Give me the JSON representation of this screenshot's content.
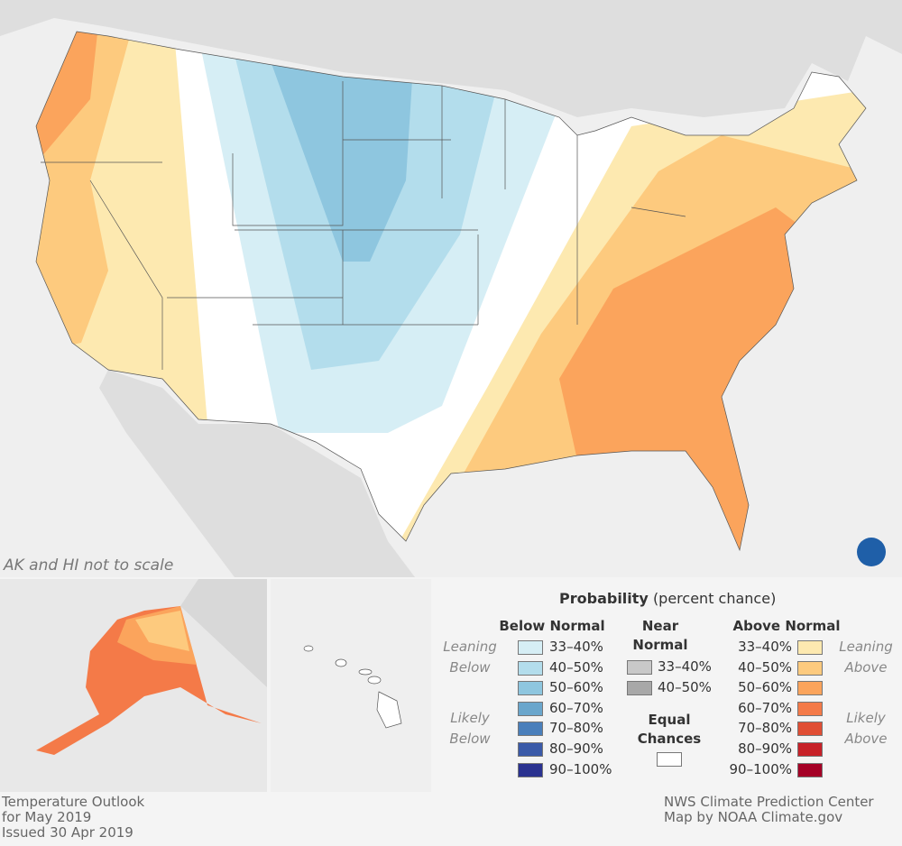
{
  "map": {
    "scale_note": "AK and HI not to scale",
    "logo": "NOAA"
  },
  "legend": {
    "title": "Probability",
    "title_sub": "(percent chance)",
    "below": {
      "heading": "Below Normal",
      "leaning": "Leaning Below",
      "likely": "Likely Below",
      "items": [
        {
          "label": "33–40%",
          "color": "#d6eef5"
        },
        {
          "label": "40–50%",
          "color": "#b3ddec"
        },
        {
          "label": "50–60%",
          "color": "#8ec6df"
        },
        {
          "label": "60–70%",
          "color": "#6aa6cc"
        },
        {
          "label": "70–80%",
          "color": "#4a7fbb"
        },
        {
          "label": "80–90%",
          "color": "#3a5aa8"
        },
        {
          "label": "90–100%",
          "color": "#2a3290"
        }
      ]
    },
    "near": {
      "heading": "Near Normal",
      "items": [
        {
          "label": "33–40%",
          "color": "#c8c8c8"
        },
        {
          "label": "40–50%",
          "color": "#a8a8a8"
        }
      ]
    },
    "equal": {
      "heading": "Equal Chances",
      "color": "#ffffff"
    },
    "above": {
      "heading": "Above Normal",
      "leaning": "Leaning Above",
      "likely": "Likely Above",
      "items": [
        {
          "label": "33–40%",
          "color": "#fde9b0"
        },
        {
          "label": "40–50%",
          "color": "#fdca7e"
        },
        {
          "label": "50–60%",
          "color": "#fba45c"
        },
        {
          "label": "60–70%",
          "color": "#f47a48"
        },
        {
          "label": "70–80%",
          "color": "#e04e34"
        },
        {
          "label": "80–90%",
          "color": "#c72128"
        },
        {
          "label": "90–100%",
          "color": "#a50026"
        }
      ]
    }
  },
  "footer": {
    "left": [
      "Temperature Outlook",
      "for May 2019",
      "Issued 30 Apr 2019"
    ],
    "right": [
      "NWS Climate Prediction Center",
      "Map by NOAA Climate.gov"
    ]
  }
}
